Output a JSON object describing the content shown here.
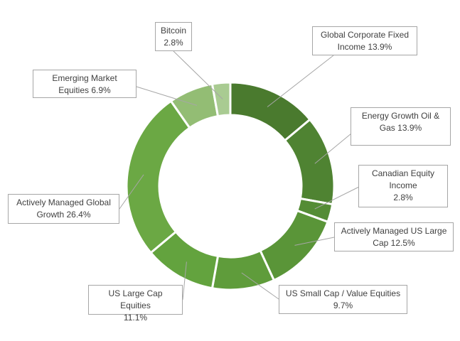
{
  "chart_data": {
    "type": "pie",
    "subtype": "doughnut",
    "title": "",
    "categories": [
      "Global Corporate Fixed Income",
      "Energy Growth Oil & Gas",
      "Canadian Equity Income",
      "Actively Managed US Large Cap",
      "US Small Cap / Value Equities",
      "US Large Cap Equities",
      "Actively Managed Global Growth",
      "Emerging Market Equities",
      "Bitcoin"
    ],
    "values": [
      13.9,
      13.9,
      2.8,
      12.5,
      9.7,
      11.1,
      26.4,
      6.9,
      2.8
    ],
    "unit": "%",
    "colors": [
      "#4a7a2e",
      "#4f8332",
      "#548c35",
      "#5a9538",
      "#5f9c3b",
      "#63a33e",
      "#6ba844",
      "#93bd74",
      "#a9cb92"
    ],
    "legend": "none",
    "labels": [
      {
        "name": "Global Corporate Fixed",
        "name2": "Income",
        "value": "13.9%"
      },
      {
        "name": "Energy Growth Oil &",
        "name2": "Gas",
        "value": "13.9%"
      },
      {
        "name": "Canadian Equity",
        "name2": "Income",
        "value": "2.8%"
      },
      {
        "name": "Actively Managed US Large",
        "name2": "Cap",
        "value": "12.5%"
      },
      {
        "name": "US Small Cap / Value Equities",
        "name2": "",
        "value": "9.7%"
      },
      {
        "name": "US Large Cap Equities",
        "name2": "",
        "value": "11.1%"
      },
      {
        "name": "Actively Managed Global",
        "name2": "Growth",
        "value": "26.4%"
      },
      {
        "name": "Emerging Market",
        "name2": "Equities",
        "value": "6.9%"
      },
      {
        "name": "Bitcoin",
        "name2": "",
        "value": "2.8%"
      }
    ]
  }
}
